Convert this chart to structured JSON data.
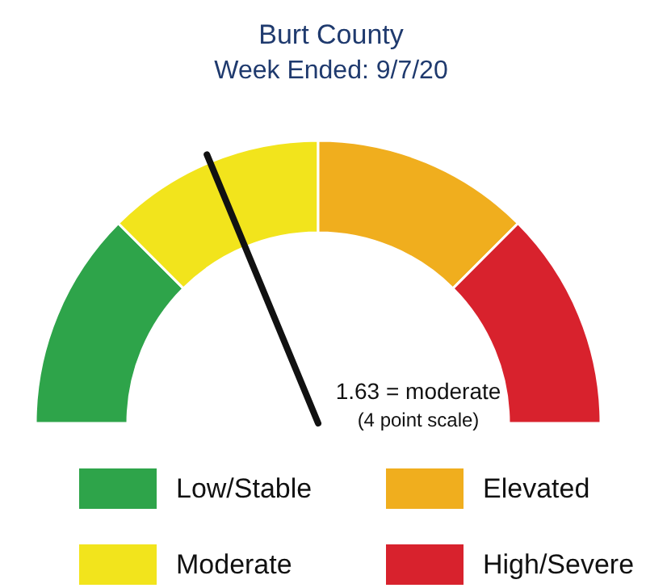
{
  "chart_data": {
    "type": "donut",
    "title": "Burt County",
    "subtitle": "Week Ended: 9/7/20",
    "categories": [
      "Low/Stable",
      "Moderate",
      "Elevated",
      "High/Severe"
    ],
    "values": [
      25,
      25,
      25,
      25
    ],
    "colors": [
      "#2ea44a",
      "#f2e41c",
      "#f0ae1e",
      "#d8222d"
    ],
    "needle": "Moderate",
    "annotations": [
      "1.63 = moderate",
      "(4 point scale)"
    ],
    "legend": "bottom"
  }
}
